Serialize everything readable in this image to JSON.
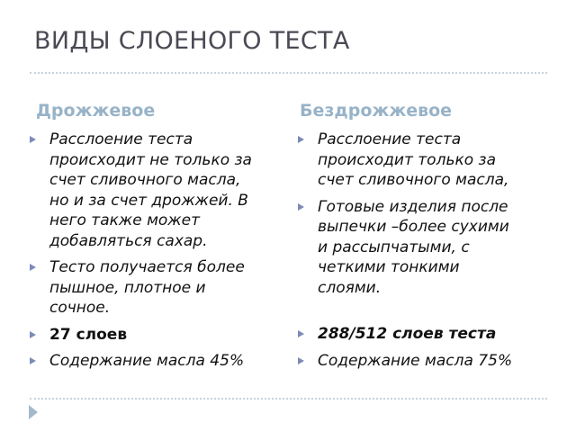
{
  "slide": {
    "title": "ВИДЫ СЛОЕНОГО ТЕСТА",
    "left": {
      "heading": "Дрожжевое",
      "items": [
        {
          "lines": [
            "Расслоение теста",
            "происходит не только за",
            "счет сливочного масла,",
            "но и за счет дрожжей. В",
            "него также может",
            "добавляться сахар."
          ]
        },
        {
          "lines": [
            "Тесто получается более",
            "пышное, плотное и",
            "сочное."
          ]
        },
        {
          "lines": [
            "27 слоев"
          ]
        },
        {
          "lines": [
            "Содержание масла 45%"
          ]
        }
      ]
    },
    "right": {
      "heading": "Бездрожжевое",
      "items": [
        {
          "lines": [
            "Расслоение теста",
            "происходит только за",
            "счет сливочного масла,"
          ]
        },
        {
          "lines": [
            "Готовые изделия после",
            "выпечки –более сухими",
            "и рассыпчатыми, с",
            "четкими тонкими",
            "слоями."
          ]
        },
        {
          "lines": [
            "288/512 слоев теста"
          ]
        },
        {
          "lines": [
            "Содержание масла 75%"
          ]
        }
      ]
    },
    "colors": {
      "title": "#4a4a55",
      "heading": "#98b3c8",
      "bullet": "#7c8ab8",
      "rule": "#c7d3df"
    }
  }
}
